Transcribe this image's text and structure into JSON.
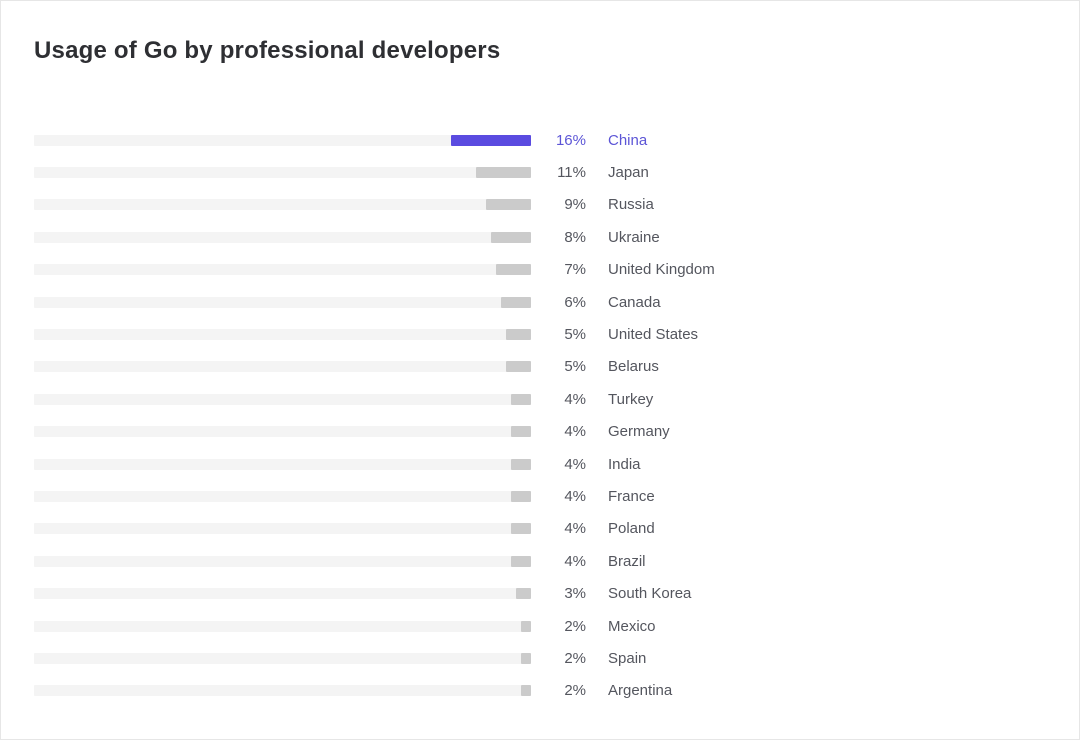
{
  "title": "Usage of Go by professional developers",
  "colors": {
    "accent_bar": "#5a4be0",
    "accent_text": "#5c55d6",
    "bar_fill_gray": "#cbcbcb",
    "bar_track": "#f4f4f4",
    "label_text": "#54565e",
    "title_text": "#2e2f33",
    "page_border": "#e6e6e6",
    "background": "#ffffff"
  },
  "chart_data": {
    "type": "bar",
    "orientation": "horizontal",
    "bar_anchor": "right",
    "title": "Usage of Go by professional developers",
    "xlabel": "",
    "ylabel": "",
    "xlim": [
      0,
      100
    ],
    "grid": false,
    "legend": false,
    "highlighted_category": "China",
    "categories": [
      "China",
      "Japan",
      "Russia",
      "Ukraine",
      "United Kingdom",
      "Canada",
      "United States",
      "Belarus",
      "Turkey",
      "Germany",
      "India",
      "France",
      "Poland",
      "Brazil",
      "South Korea",
      "Mexico",
      "Spain",
      "Argentina"
    ],
    "values": [
      16,
      11,
      9,
      8,
      7,
      6,
      5,
      5,
      4,
      4,
      4,
      4,
      4,
      4,
      3,
      2,
      2,
      2
    ],
    "value_labels": [
      "16%",
      "11%",
      "9%",
      "8%",
      "7%",
      "6%",
      "5%",
      "5%",
      "4%",
      "4%",
      "4%",
      "4%",
      "4%",
      "4%",
      "3%",
      "2%",
      "2%",
      "2%"
    ]
  }
}
